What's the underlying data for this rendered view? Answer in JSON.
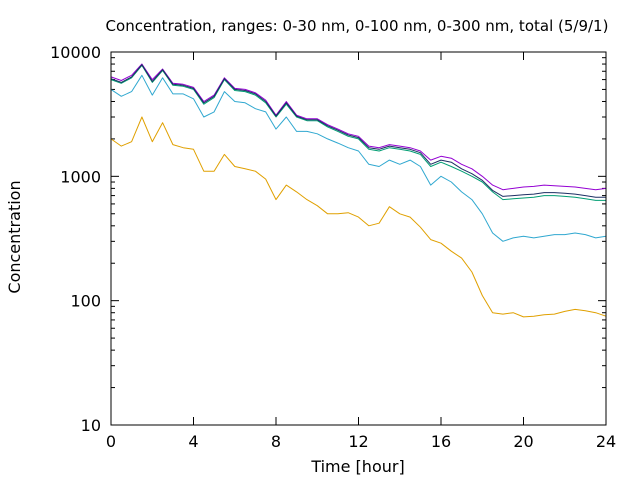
{
  "chart_data": {
    "type": "line",
    "title": "Concentration, ranges: 0-30 nm, 0-100 nm, 0-300 nm, total (5/9/1)",
    "xlabel": "Time [hour]",
    "ylabel": "Concentration",
    "xlim": [
      0,
      24
    ],
    "ylim": [
      10,
      10000
    ],
    "yscale": "log",
    "grid": false,
    "legend": "none",
    "x_ticks": [
      0,
      4,
      8,
      12,
      16,
      20,
      24
    ],
    "x_tick_labels": [
      "0",
      "4",
      "8",
      "12",
      "16",
      "20",
      "24"
    ],
    "y_ticks": [
      10,
      100,
      1000,
      10000
    ],
    "y_tick_labels": [
      "10",
      "100",
      "1000",
      "10000"
    ],
    "x": [
      0,
      0.5,
      1,
      1.5,
      2,
      2.5,
      3,
      3.5,
      4,
      4.5,
      5,
      5.5,
      6,
      6.5,
      7,
      7.5,
      8,
      8.5,
      9,
      9.5,
      10,
      10.5,
      11,
      11.5,
      12,
      12.5,
      13,
      13.5,
      14,
      14.5,
      15,
      15.5,
      16,
      16.5,
      17,
      17.5,
      18,
      18.5,
      19,
      19.5,
      20,
      20.5,
      21,
      21.5,
      22,
      22.5,
      23,
      23.5,
      24
    ],
    "series": [
      {
        "color": "#e0a000",
        "values": [
          2000,
          1750,
          1900,
          3000,
          1900,
          2700,
          1800,
          1700,
          1650,
          1100,
          1100,
          1500,
          1200,
          1150,
          1100,
          950,
          650,
          850,
          750,
          650,
          580,
          500,
          500,
          510,
          470,
          400,
          420,
          570,
          500,
          470,
          390,
          310,
          290,
          250,
          220,
          170,
          110,
          80,
          78,
          80,
          74,
          75,
          77,
          78,
          82,
          85,
          83,
          80,
          75
        ]
      },
      {
        "color": "#30a8d0",
        "values": [
          5000,
          4400,
          4800,
          6500,
          4500,
          6200,
          4600,
          4600,
          4200,
          3000,
          3300,
          4800,
          4000,
          3900,
          3500,
          3300,
          2400,
          3000,
          2300,
          2300,
          2200,
          2000,
          1850,
          1700,
          1600,
          1250,
          1200,
          1350,
          1250,
          1350,
          1200,
          850,
          1000,
          900,
          750,
          650,
          500,
          350,
          300,
          320,
          330,
          320,
          330,
          340,
          340,
          350,
          340,
          320,
          330
        ]
      },
      {
        "color": "#009e73",
        "values": [
          6000,
          5600,
          6200,
          7800,
          5700,
          7100,
          5400,
          5300,
          5000,
          3800,
          4300,
          6000,
          4900,
          4800,
          4500,
          3900,
          3000,
          3800,
          3000,
          2800,
          2800,
          2500,
          2300,
          2100,
          2000,
          1650,
          1600,
          1700,
          1650,
          1600,
          1500,
          1200,
          1300,
          1200,
          1100,
          1000,
          900,
          750,
          650,
          660,
          670,
          680,
          700,
          700,
          690,
          680,
          660,
          640,
          640
        ]
      },
      {
        "color": "#9400d3",
        "values": [
          6300,
          5900,
          6500,
          8000,
          6000,
          7300,
          5600,
          5500,
          5200,
          4000,
          4500,
          6200,
          5100,
          5000,
          4700,
          4100,
          3100,
          4000,
          3100,
          2900,
          2900,
          2600,
          2400,
          2200,
          2100,
          1750,
          1700,
          1800,
          1750,
          1700,
          1600,
          1350,
          1450,
          1400,
          1250,
          1150,
          1000,
          850,
          780,
          800,
          820,
          830,
          850,
          840,
          830,
          820,
          800,
          780,
          800
        ]
      },
      {
        "color": "#1c2f63",
        "values": [
          6100,
          5700,
          6300,
          7900,
          5800,
          7200,
          5500,
          5400,
          5100,
          3900,
          4400,
          6100,
          5000,
          4900,
          4600,
          4000,
          3050,
          3900,
          3050,
          2850,
          2850,
          2550,
          2350,
          2150,
          2050,
          1700,
          1650,
          1750,
          1700,
          1650,
          1550,
          1250,
          1350,
          1300,
          1150,
          1050,
          930,
          770,
          690,
          700,
          710,
          720,
          740,
          740,
          730,
          720,
          700,
          680,
          680
        ]
      }
    ]
  }
}
